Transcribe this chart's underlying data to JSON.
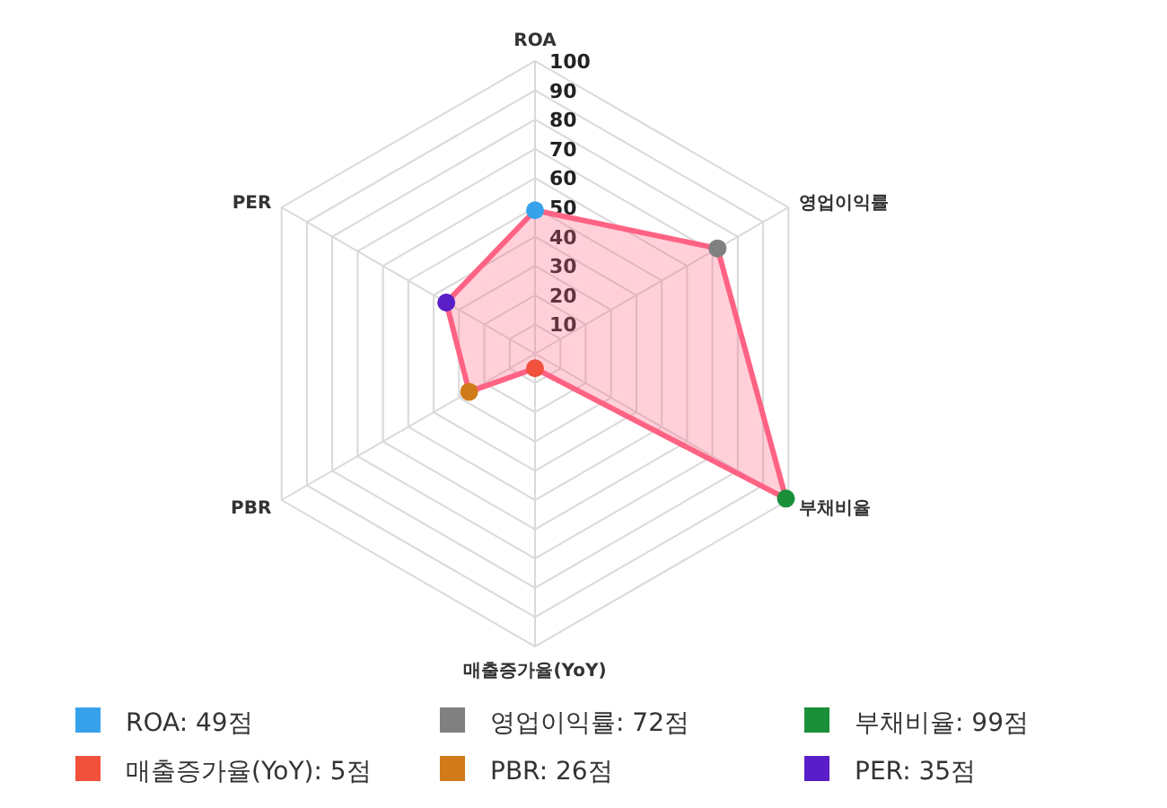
{
  "chart_data": {
    "type": "radar",
    "categories": [
      "ROA",
      "영업이익률",
      "부채비율",
      "매출증가율(YoY)",
      "PBR",
      "PER"
    ],
    "series": [
      {
        "color": "#ff6384",
        "values": [
          49,
          72,
          99,
          5,
          26,
          35
        ],
        "colors": [
          "#36a2eb",
          "#808080",
          "#1a8f3a",
          "#f0503c",
          "#d07a1a",
          "#5a1ec8"
        ]
      }
    ],
    "annotations": [
      "ROA: 49점",
      "영업이익률: 72점",
      "부채비율: 99점",
      "매출증가율(YoY): 5점",
      "PBR: 26점",
      "PER: 35점"
    ],
    "ylim": [
      0,
      100
    ],
    "yticks": [
      10,
      20,
      30,
      40,
      50,
      60,
      70,
      80,
      90,
      100
    ],
    "grid": true,
    "marker": "circle"
  }
}
